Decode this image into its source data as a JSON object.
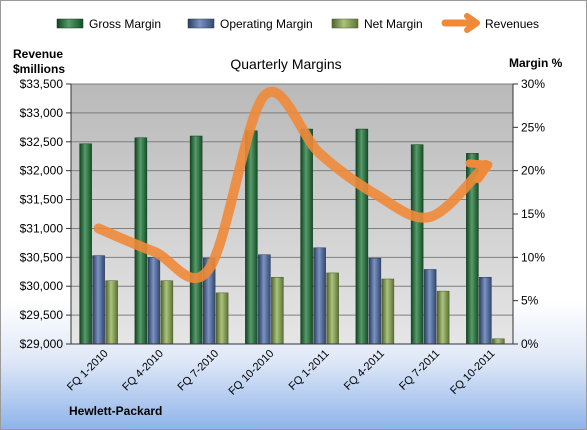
{
  "chart_data": {
    "type": "bar",
    "title": "Quarterly Margins",
    "left_axis_label": [
      "Revenue",
      "$millions"
    ],
    "right_axis_label": "Margin %",
    "footer": "Hewlett-Packard",
    "categories": [
      "FQ 1-2010",
      "FQ 4-2010",
      "FQ 7-2010",
      "FQ 10-2010",
      "FQ 1-2011",
      "FQ 4-2011",
      "FQ 7-2011",
      "FQ 10-2011"
    ],
    "bar_series": [
      {
        "name": "Gross Margin",
        "color": "#1f7a3a",
        "values": [
          23.1,
          23.8,
          24.0,
          24.6,
          24.8,
          24.8,
          23.0,
          22.0
        ]
      },
      {
        "name": "Operating Margin",
        "color": "#4f6fad",
        "values": [
          10.2,
          10.0,
          9.9,
          10.3,
          11.1,
          9.9,
          8.6,
          7.7
        ]
      },
      {
        "name": "Net Margin",
        "color": "#8fb050",
        "values": [
          7.3,
          7.3,
          5.9,
          7.7,
          8.2,
          7.5,
          6.1,
          0.6
        ]
      }
    ],
    "line_series": {
      "name": "Revenues",
      "color": "#ef8a3a",
      "values": [
        31000,
        30600,
        30300,
        33300,
        32300,
        31600,
        31200,
        32100
      ]
    },
    "left_axis": {
      "min": 29000,
      "max": 33500,
      "step": 500,
      "tick_labels": [
        "$29,000",
        "$29,500",
        "$30,000",
        "$30,500",
        "$31,000",
        "$31,500",
        "$32,000",
        "$32,500",
        "$33,000",
        "$33,500"
      ]
    },
    "right_axis": {
      "min": 0,
      "max": 30,
      "step": 5,
      "tick_labels": [
        "0%",
        "5%",
        "10%",
        "15%",
        "20%",
        "25%",
        "30%"
      ]
    },
    "grid": true,
    "legend_position": "top"
  }
}
